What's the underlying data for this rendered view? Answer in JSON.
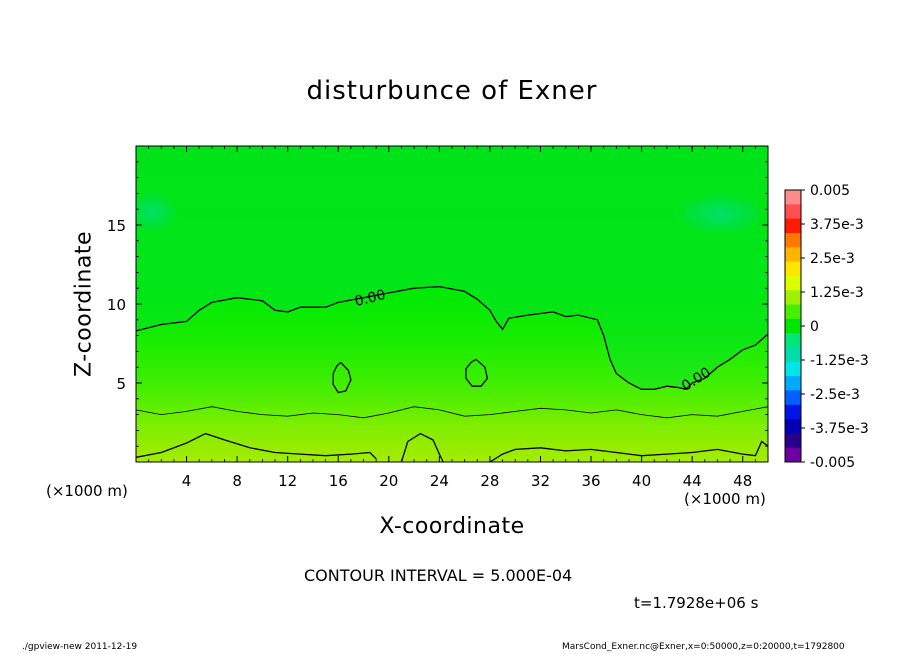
{
  "chart_data": {
    "type": "heatmap",
    "title": "disturbunce of Exner",
    "xlabel": "X-coordinate",
    "ylabel": "Z-coordinate",
    "x_unit_label": "(×1000 m)",
    "xlim": [
      0,
      50
    ],
    "ylim": [
      0,
      20
    ],
    "x_ticks": [
      4,
      8,
      12,
      16,
      20,
      24,
      28,
      32,
      36,
      40,
      44,
      48
    ],
    "y_ticks": [
      5,
      10,
      15
    ],
    "contour_interval_text": "CONTOUR INTERVAL = 5.000E-04",
    "time_text": "t=1.7928e+06 s",
    "colorbar": {
      "labels": [
        "0.005",
        "3.75e-3",
        "2.5e-3",
        "1.25e-3",
        "0",
        "-1.25e-3",
        "-2.5e-3",
        "-3.75e-3",
        "-0.005"
      ],
      "colors": [
        "#ff8c8c",
        "#ff5050",
        "#ff1a00",
        "#ff7800",
        "#ffb400",
        "#ffe600",
        "#dcff00",
        "#a0f000",
        "#44f000",
        "#00e600",
        "#00e67a",
        "#00dcaa",
        "#00e6e6",
        "#00aaff",
        "#0060ff",
        "#0014e6",
        "#0000b4",
        "#28008c",
        "#6e00a0"
      ]
    },
    "contours": [
      {
        "label": "0.00",
        "points": [
          [
            0,
            8.3
          ],
          [
            2,
            8.7
          ],
          [
            4,
            8.9
          ],
          [
            5,
            9.6
          ],
          [
            6,
            10.1
          ],
          [
            8,
            10.4
          ],
          [
            10,
            10.2
          ],
          [
            11,
            9.6
          ],
          [
            12,
            9.5
          ],
          [
            13,
            9.8
          ],
          [
            15,
            9.8
          ],
          [
            16,
            10.1
          ],
          [
            18,
            10.4
          ],
          [
            20,
            10.7
          ],
          [
            22,
            11.0
          ],
          [
            24,
            11.1
          ],
          [
            26,
            10.8
          ],
          [
            27,
            10.3
          ],
          [
            28,
            9.6
          ],
          [
            28.5,
            8.9
          ],
          [
            29,
            8.4
          ],
          [
            29.5,
            9.1
          ],
          [
            31,
            9.3
          ],
          [
            32,
            9.4
          ],
          [
            33,
            9.5
          ],
          [
            34,
            9.2
          ],
          [
            35,
            9.3
          ],
          [
            36.5,
            9.0
          ],
          [
            37,
            8.0
          ],
          [
            37.5,
            6.5
          ],
          [
            38,
            5.6
          ],
          [
            39,
            5.0
          ],
          [
            40,
            4.6
          ],
          [
            41,
            4.6
          ],
          [
            42,
            4.8
          ],
          [
            43,
            4.7
          ],
          [
            43.5,
            4.6
          ],
          [
            44,
            5.0
          ],
          [
            45,
            5.3
          ],
          [
            46,
            6.0
          ],
          [
            47,
            6.5
          ],
          [
            48,
            7.1
          ],
          [
            49,
            7.4
          ],
          [
            50,
            8.1
          ]
        ]
      },
      {
        "label": "",
        "points": [
          [
            0,
            3.3
          ],
          [
            2,
            3.0
          ],
          [
            4,
            3.2
          ],
          [
            6,
            3.5
          ],
          [
            8,
            3.2
          ],
          [
            10,
            3.0
          ],
          [
            12,
            2.9
          ],
          [
            14,
            3.1
          ],
          [
            16,
            3.0
          ],
          [
            18,
            2.8
          ],
          [
            20,
            3.1
          ],
          [
            22,
            3.5
          ],
          [
            24,
            3.3
          ],
          [
            26,
            2.9
          ],
          [
            28,
            3.0
          ],
          [
            30,
            3.2
          ],
          [
            32,
            3.4
          ],
          [
            34,
            3.3
          ],
          [
            36,
            3.1
          ],
          [
            38,
            3.3
          ],
          [
            40,
            3.0
          ],
          [
            42,
            2.8
          ],
          [
            44,
            3.0
          ],
          [
            46,
            2.9
          ],
          [
            48,
            3.2
          ],
          [
            50,
            3.5
          ]
        ]
      },
      {
        "label": "",
        "points": [
          [
            0,
            0.3
          ],
          [
            2,
            0.6
          ],
          [
            4,
            1.2
          ],
          [
            5.5,
            1.8
          ],
          [
            7,
            1.4
          ],
          [
            9,
            0.9
          ],
          [
            11,
            0.6
          ],
          [
            13,
            0.5
          ],
          [
            15,
            0.4
          ],
          [
            17,
            0.5
          ],
          [
            18.5,
            0.6
          ],
          [
            19,
            0.2
          ]
        ]
      },
      {
        "label": "",
        "points": [
          [
            21,
            0
          ],
          [
            21.5,
            1.3
          ],
          [
            22.5,
            1.8
          ],
          [
            23.5,
            1.4
          ],
          [
            24,
            0.5
          ],
          [
            24.3,
            0
          ]
        ]
      },
      {
        "label": "",
        "points": [
          [
            28,
            0
          ],
          [
            29,
            0.5
          ],
          [
            30,
            0.8
          ],
          [
            32,
            0.9
          ],
          [
            34,
            0.7
          ],
          [
            36,
            0.8
          ],
          [
            38,
            0.6
          ],
          [
            40,
            0.4
          ],
          [
            42,
            0.5
          ],
          [
            44,
            0.6
          ],
          [
            46,
            0.8
          ],
          [
            48,
            0.5
          ],
          [
            49,
            0.4
          ],
          [
            49.5,
            1.3
          ],
          [
            50,
            1.0
          ]
        ]
      },
      {
        "label": "",
        "points": [
          [
            16.2,
            6.3
          ],
          [
            16.8,
            5.8
          ],
          [
            17.0,
            5.2
          ],
          [
            16.6,
            4.5
          ],
          [
            16.0,
            4.4
          ],
          [
            15.6,
            4.9
          ],
          [
            15.6,
            5.6
          ],
          [
            15.9,
            6.1
          ],
          [
            16.2,
            6.3
          ]
        ]
      },
      {
        "label": "",
        "points": [
          [
            26.9,
            6.5
          ],
          [
            27.6,
            6.0
          ],
          [
            27.8,
            5.3
          ],
          [
            27.3,
            4.8
          ],
          [
            26.6,
            4.8
          ],
          [
            26.1,
            5.3
          ],
          [
            26.1,
            5.9
          ],
          [
            26.5,
            6.3
          ],
          [
            26.9,
            6.5
          ]
        ]
      }
    ]
  },
  "footer": {
    "left": "./gpview-new   2011-12-19",
    "right": "MarsCond_Exner.nc@Exner,x=0:50000,z=0:20000,t=1792800"
  }
}
